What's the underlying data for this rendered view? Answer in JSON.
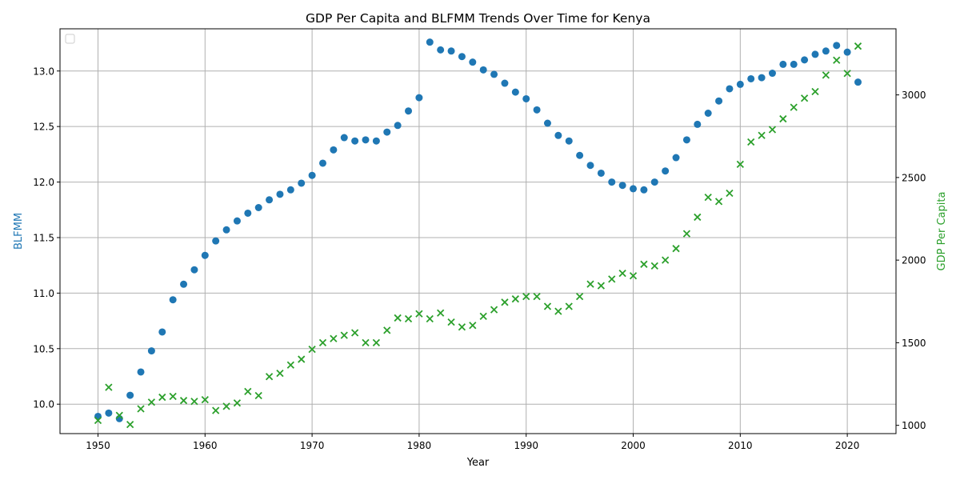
{
  "chart_data": {
    "type": "scatter",
    "title": "GDP Per Capita and BLFMM Trends Over Time for Kenya",
    "xlabel": "Year",
    "ylabel_left": "BLFMM",
    "ylabel_right": "GDP Per Capita",
    "xlim": [
      1946.45,
      2024.55
    ],
    "ylim_left": [
      9.735,
      13.38
    ],
    "ylim_right": [
      950,
      3400
    ],
    "xticks": [
      1950,
      1960,
      1970,
      1980,
      1990,
      2000,
      2010,
      2020
    ],
    "yticks_left": [
      10.0,
      10.5,
      11.0,
      11.5,
      12.0,
      12.5,
      13.0
    ],
    "yticks_right": [
      1000,
      1500,
      2000,
      2500,
      3000
    ],
    "grid": true,
    "legend": "top-left (empty)",
    "colors": {
      "blfmm": "#1f77b4",
      "gdp": "#2ca02c",
      "grid": "#b0b0b0"
    },
    "x": [
      1950,
      1951,
      1952,
      1953,
      1954,
      1955,
      1956,
      1957,
      1958,
      1959,
      1960,
      1961,
      1962,
      1963,
      1964,
      1965,
      1966,
      1967,
      1968,
      1969,
      1970,
      1971,
      1972,
      1973,
      1974,
      1975,
      1976,
      1977,
      1978,
      1979,
      1980,
      1981,
      1982,
      1983,
      1984,
      1985,
      1986,
      1987,
      1988,
      1989,
      1990,
      1991,
      1992,
      1993,
      1994,
      1995,
      1996,
      1997,
      1998,
      1999,
      2000,
      2001,
      2002,
      2003,
      2004,
      2005,
      2006,
      2007,
      2008,
      2009,
      2010,
      2011,
      2012,
      2013,
      2014,
      2015,
      2016,
      2017,
      2018,
      2019,
      2020,
      2021
    ],
    "series": [
      {
        "axis": "left",
        "marker": "circle",
        "values": [
          9.89,
          9.92,
          9.87,
          10.08,
          10.29,
          10.48,
          10.65,
          10.94,
          11.08,
          11.21,
          11.34,
          11.47,
          11.57,
          11.65,
          11.72,
          11.77,
          11.84,
          11.89,
          11.93,
          11.99,
          12.06,
          12.17,
          12.29,
          12.4,
          12.37,
          12.38,
          12.37,
          12.45,
          12.51,
          12.64,
          12.76,
          13.26,
          13.19,
          13.18,
          13.13,
          13.08,
          13.01,
          12.97,
          12.89,
          12.81,
          12.75,
          12.65,
          12.53,
          12.42,
          12.37,
          12.24,
          12.15,
          12.08,
          12.0,
          11.97,
          11.94,
          11.93,
          12.0,
          12.1,
          12.22,
          12.38,
          12.52,
          12.62,
          12.73,
          12.84,
          12.88,
          12.93,
          12.94,
          12.98,
          13.06,
          13.06,
          13.1,
          13.15,
          13.18,
          13.23,
          13.17,
          12.9
        ]
      },
      {
        "axis": "right",
        "marker": "x",
        "values": [
          1030,
          1230,
          1060,
          1005,
          1100,
          1140,
          1170,
          1175,
          1150,
          1145,
          1155,
          1090,
          1115,
          1135,
          1205,
          1180,
          1295,
          1315,
          1365,
          1400,
          1460,
          1500,
          1525,
          1545,
          1560,
          1500,
          1500,
          1575,
          1650,
          1645,
          1675,
          1645,
          1680,
          1625,
          1595,
          1605,
          1660,
          1700,
          1745,
          1765,
          1780,
          1780,
          1720,
          1690,
          1720,
          1780,
          1855,
          1845,
          1885,
          1920,
          1905,
          1975,
          1965,
          2000,
          2070,
          2160,
          2260,
          2380,
          2355,
          2405,
          2580,
          2715,
          2755,
          2790,
          2855,
          2925,
          2980,
          3020,
          3120,
          3210,
          3130,
          3295
        ]
      }
    ]
  }
}
